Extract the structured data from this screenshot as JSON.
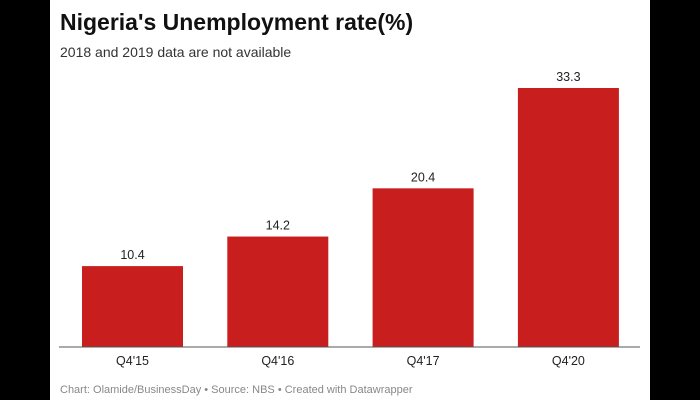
{
  "chart_data": {
    "type": "bar",
    "title": "Nigeria's Unemployment rate(%)",
    "subtitle": "2018 and 2019 data are not available",
    "categories": [
      "Q4'15",
      "Q4'16",
      "Q4'17",
      "Q4'20"
    ],
    "values": [
      10.4,
      14.2,
      20.4,
      33.3
    ],
    "value_labels": [
      "10.4",
      "14.2",
      "20.4",
      "33.3"
    ],
    "bar_color": "#c81e1e",
    "grid": false,
    "footer": "Chart: Olamide/BusinessDay • Source: NBS • Created with Datawrapper"
  }
}
